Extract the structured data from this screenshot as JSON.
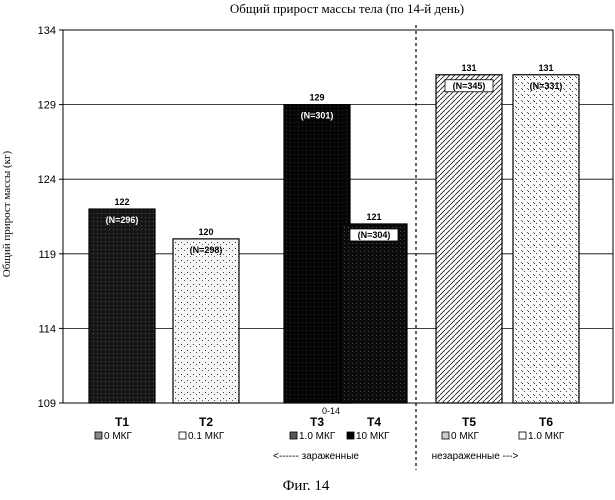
{
  "chart_data": {
    "type": "bar",
    "title": "Общий прирост массы тела (по 14-й день)",
    "ylabel": "Общий прирост массы (кг)",
    "xlabel": "",
    "ylim": [
      109,
      134
    ],
    "yticks": [
      109,
      114,
      119,
      124,
      129,
      134
    ],
    "categories": [
      "T1",
      "T2",
      "T3",
      "T4",
      "T5",
      "T6"
    ],
    "doses": [
      "0 МКГ",
      "0.1 МКГ",
      "1.0 МКГ",
      "10 МКГ",
      "0 МКГ",
      "1.0 МКГ"
    ],
    "values": [
      122,
      120,
      129,
      121,
      131,
      131
    ],
    "value_labels": [
      "122",
      "120",
      "129",
      "121",
      "131",
      "131"
    ],
    "n_labels": [
      "(N=296)",
      "(N=298)",
      "(N=301)",
      "(N=304)",
      "(N=345)",
      "(N=331)"
    ],
    "period_label": "0-14",
    "groups": [
      {
        "label": "<------ зараженные"
      },
      {
        "label": "незараженные --->"
      }
    ]
  },
  "caption": "Фиг. 14",
  "colors": {
    "T1": "#161616",
    "T2": "#f6f6f6",
    "T3": "#050505",
    "T4": "#0c0c0c",
    "T5": "#ffffff",
    "T6": "#fbfbfb"
  }
}
